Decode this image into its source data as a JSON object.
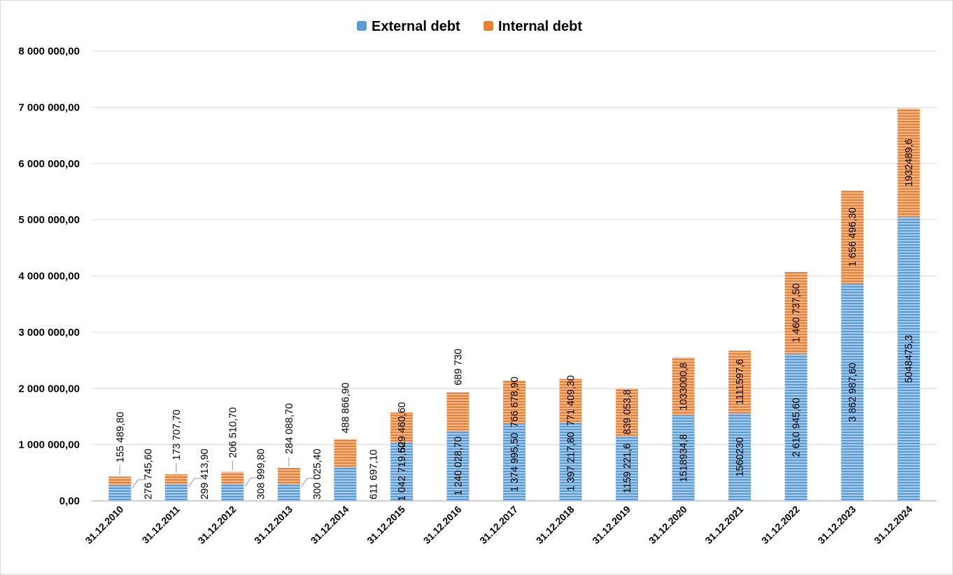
{
  "chart_data": {
    "type": "bar",
    "stacked": true,
    "categories": [
      "31.12.2010",
      "31.12.2011",
      "31.12.2012",
      "31.12.2013",
      "31.12.2014",
      "31.12.2015",
      "31.12.2016",
      "31.12.2017",
      "31.12.2018",
      "31.12.2019",
      "31.12.2020",
      "31.12.2021",
      "31.12.2022",
      "31.12.2023",
      "31.12.2024"
    ],
    "series": [
      {
        "name": "External debt",
        "color": "#5b9bd5",
        "values": [
          276745.6,
          299413.9,
          308999.8,
          300025.4,
          611697.1,
          1042719.6,
          1240028.7,
          1374995.5,
          1397217.8,
          1159221.6,
          1518934.8,
          1560230,
          2610945.6,
          3862987.6,
          5048475.3
        ],
        "labels": [
          "276 745,60",
          "299 413,90",
          "308 999,80",
          "300 025,40",
          "611 697,10",
          "1 042 719,60",
          "1 240 028,70",
          "1 374 995,50",
          "1 397 217,80",
          "1159 221,6",
          "1518934,8",
          "1560230",
          "2 610 945,60",
          "3 862 987,60",
          "5048475,3"
        ]
      },
      {
        "name": "Internal debt",
        "color": "#ed7d31",
        "values": [
          155489.8,
          173707.7,
          206510.7,
          284088.7,
          488866.9,
          529460.6,
          689730,
          766678.9,
          771409.3,
          839053.8,
          1033000.8,
          1111597.6,
          1460737.5,
          1656496.3,
          1932489.6
        ],
        "labels": [
          "155 489,80",
          "173 707,70",
          "206 510,70",
          "284 088,70",
          "488 866,90",
          "529 460,60",
          "689 730",
          "766 678,90",
          "771 409,30",
          "839 053,8",
          "1033000,8",
          "1111597,6",
          "1 460 737,50",
          "1 656 496,30",
          "1932489,6"
        ]
      }
    ],
    "y_ticks": [
      "0,00",
      "1 000 000,00",
      "2 000 000,00",
      "3 000 000,00",
      "4 000 000,00",
      "5 000 000,00",
      "6 000 000,00",
      "7 000 000,00",
      "8 000 000,00"
    ],
    "ylim": [
      0,
      8000000
    ],
    "grid": true,
    "legend": "top-center",
    "title": "",
    "xlabel": "",
    "ylabel": ""
  }
}
